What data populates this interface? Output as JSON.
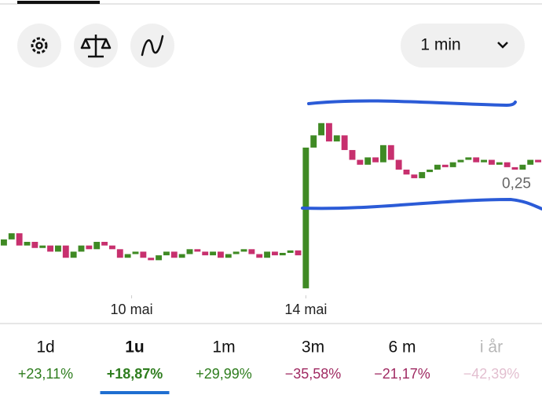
{
  "toolbar": {
    "interval": "1 min"
  },
  "chart_data": {
    "type": "candlestick",
    "x": [
      0,
      1,
      2,
      3,
      4,
      5,
      6,
      7,
      8,
      9,
      10,
      11,
      12,
      13,
      14,
      15,
      16,
      17,
      18,
      19,
      20,
      21,
      22,
      23,
      24,
      25,
      26,
      27,
      28,
      29,
      30,
      31,
      32,
      33,
      34,
      35,
      36,
      37,
      38,
      39,
      40,
      41,
      42,
      43,
      44,
      45,
      46,
      47,
      48,
      49,
      50,
      51,
      52,
      53,
      54,
      55,
      56,
      57,
      58,
      59,
      60,
      61,
      62,
      63,
      64,
      65,
      66,
      67,
      68,
      69
    ],
    "open": [
      0.2,
      0.205,
      0.21,
      0.2,
      0.203,
      0.198,
      0.2,
      0.195,
      0.2,
      0.19,
      0.195,
      0.2,
      0.197,
      0.203,
      0.2,
      0.197,
      0.19,
      0.193,
      0.195,
      0.19,
      0.188,
      0.192,
      0.195,
      0.19,
      0.193,
      0.197,
      0.195,
      0.192,
      0.195,
      0.19,
      0.193,
      0.195,
      0.197,
      0.193,
      0.19,
      0.195,
      0.192,
      0.194,
      0.196,
      0.165,
      0.28,
      0.29,
      0.3,
      0.285,
      0.29,
      0.278,
      0.27,
      0.266,
      0.272,
      0.268,
      0.282,
      0.27,
      0.262,
      0.258,
      0.255,
      0.26,
      0.262,
      0.266,
      0.264,
      0.268,
      0.27,
      0.272,
      0.268,
      0.27,
      0.266,
      0.268,
      0.264,
      0.262,
      0.266,
      0.27
    ],
    "close": [
      0.205,
      0.21,
      0.2,
      0.203,
      0.198,
      0.2,
      0.195,
      0.2,
      0.19,
      0.195,
      0.2,
      0.197,
      0.203,
      0.2,
      0.197,
      0.19,
      0.193,
      0.195,
      0.19,
      0.188,
      0.192,
      0.195,
      0.19,
      0.193,
      0.197,
      0.195,
      0.192,
      0.195,
      0.19,
      0.193,
      0.195,
      0.197,
      0.193,
      0.19,
      0.195,
      0.192,
      0.194,
      0.196,
      0.192,
      0.28,
      0.29,
      0.3,
      0.285,
      0.29,
      0.278,
      0.27,
      0.266,
      0.272,
      0.268,
      0.282,
      0.27,
      0.262,
      0.258,
      0.255,
      0.26,
      0.262,
      0.266,
      0.264,
      0.268,
      0.27,
      0.272,
      0.268,
      0.27,
      0.266,
      0.268,
      0.264,
      0.262,
      0.266,
      0.27,
      0.268
    ],
    "up_color": "#3f8a24",
    "down_color": "#c7306e",
    "xlim": [
      0,
      70
    ],
    "ylim": [
      0.16,
      0.33
    ],
    "xticks": [
      {
        "value": 17,
        "label": "10 mai"
      },
      {
        "value": 39.5,
        "label": "14 mai"
      }
    ],
    "yticks": [
      {
        "value": 0.25,
        "label": "0,25"
      }
    ]
  },
  "periods": {
    "selected_index": 1,
    "items": [
      {
        "label": "1d",
        "change": "+23,11%",
        "color": "#2e7d1e"
      },
      {
        "label": "1u",
        "change": "+18,87%",
        "color": "#2e7d1e"
      },
      {
        "label": "1m",
        "change": "+29,99%",
        "color": "#2e7d1e"
      },
      {
        "label": "3m",
        "change": "−35,58%",
        "color": "#a02a62"
      },
      {
        "label": "6 m",
        "change": "−21,17%",
        "color": "#a02a62"
      },
      {
        "label": "i år",
        "change": "−42,39%",
        "color": "#a02a62"
      }
    ]
  }
}
